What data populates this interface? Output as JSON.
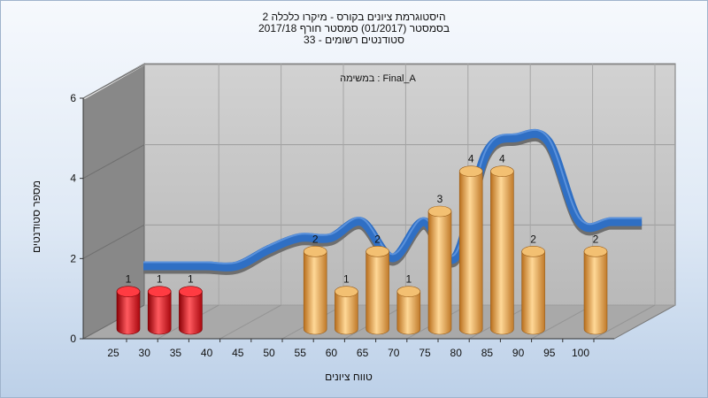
{
  "header": {
    "title_lines": [
      "היסטוגרמת ציונים בקורס - מיקרו כלכלה 2",
      "בסמסטר  (01/2017)  סמסטר חורף 2017/18",
      "סטודנטים רשומים - 33"
    ]
  },
  "chart_data": {
    "type": "bar",
    "plot_label": "במשימה : Final_A",
    "xlabel": "טווח ציונים",
    "ylabel": "מספר סטודנטים",
    "x_ticks": [
      "25",
      "30",
      "35",
      "40",
      "45",
      "50",
      "55",
      "60",
      "65",
      "70",
      "75",
      "80",
      "85",
      "90",
      "95",
      "100"
    ],
    "y_ticks": [
      "0",
      "2",
      "4",
      "6"
    ],
    "ylim": [
      0,
      6
    ],
    "bars": [
      {
        "x": 25,
        "value": 1,
        "group": "fail"
      },
      {
        "x": 30,
        "value": 1,
        "group": "fail"
      },
      {
        "x": 35,
        "value": 1,
        "group": "fail"
      },
      {
        "x": 55,
        "value": 2,
        "group": "pass"
      },
      {
        "x": 60,
        "value": 1,
        "group": "pass"
      },
      {
        "x": 65,
        "value": 2,
        "group": "pass"
      },
      {
        "x": 70,
        "value": 1,
        "group": "pass"
      },
      {
        "x": 75,
        "value": 3,
        "group": "pass"
      },
      {
        "x": 80,
        "value": 4,
        "group": "pass"
      },
      {
        "x": 85,
        "value": 4,
        "group": "pass"
      },
      {
        "x": 90,
        "value": 2,
        "group": "pass"
      },
      {
        "x": 100,
        "value": 2,
        "group": "pass"
      }
    ],
    "trend": [
      {
        "x": 25,
        "y": 1.4
      },
      {
        "x": 30,
        "y": 1.4
      },
      {
        "x": 35,
        "y": 1.4
      },
      {
        "x": 40,
        "y": 1.4
      },
      {
        "x": 45,
        "y": 1.8
      },
      {
        "x": 50,
        "y": 2.1
      },
      {
        "x": 55,
        "y": 2.1
      },
      {
        "x": 60,
        "y": 2.5
      },
      {
        "x": 65,
        "y": 1.6
      },
      {
        "x": 70,
        "y": 2.5
      },
      {
        "x": 75,
        "y": 1.6
      },
      {
        "x": 80,
        "y": 4.2
      },
      {
        "x": 85,
        "y": 4.6
      },
      {
        "x": 90,
        "y": 4.5
      },
      {
        "x": 95,
        "y": 2.5
      },
      {
        "x": 100,
        "y": 2.5
      },
      {
        "x": 105,
        "y": 2.5
      }
    ],
    "colors": {
      "fail": "#e0141c",
      "pass": "#e8a84a",
      "trend": "#2f6fc4",
      "back_wall": "#c4c4c4",
      "side_wall": "#8a8a8a",
      "floor": "#a8a8a8"
    },
    "grid": true
  }
}
